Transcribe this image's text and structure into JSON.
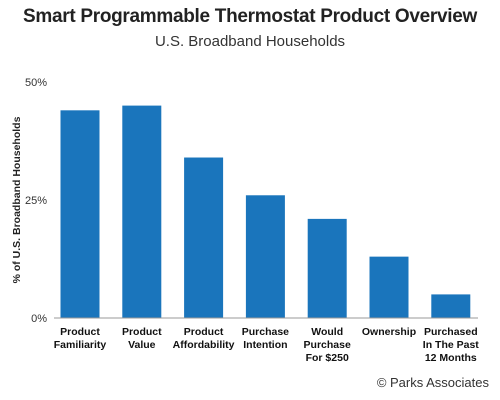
{
  "chart_data": {
    "type": "bar",
    "title": "Smart Programmable Thermostat Product Overview",
    "subtitle": "U.S. Broadband Households",
    "ylabel": "% of U.S. Broadband Households",
    "xlabel": "",
    "categories": [
      [
        "Product",
        "Familiarity"
      ],
      [
        "Product",
        "Value"
      ],
      [
        "Product",
        "Affordability"
      ],
      [
        "Purchase",
        "Intention"
      ],
      [
        "Would",
        "Purchase",
        "For $250"
      ],
      [
        "Ownership"
      ],
      [
        "Purchased",
        "In The Past",
        "12 Months"
      ]
    ],
    "values": [
      44,
      45,
      34,
      26,
      21,
      13,
      5
    ],
    "ylim": [
      0,
      50
    ],
    "yticks": [
      0,
      25,
      50
    ],
    "ytick_labels": [
      "0%",
      "25%",
      "50%"
    ],
    "grid": false,
    "legend": "none",
    "bar_color": "#1a75bc"
  },
  "footer": {
    "credit": "© Parks Associates"
  }
}
